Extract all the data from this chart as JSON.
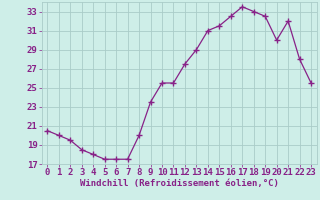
{
  "x": [
    0,
    1,
    2,
    3,
    4,
    5,
    6,
    7,
    8,
    9,
    10,
    11,
    12,
    13,
    14,
    15,
    16,
    17,
    18,
    19,
    20,
    21,
    22,
    23
  ],
  "y": [
    20.5,
    20.0,
    19.5,
    18.5,
    18.0,
    17.5,
    17.5,
    17.5,
    20.0,
    23.5,
    25.5,
    25.5,
    27.5,
    29.0,
    31.0,
    31.5,
    32.5,
    33.5,
    33.0,
    32.5,
    30.0,
    32.0,
    28.0,
    25.5
  ],
  "line_color": "#882288",
  "marker": "+",
  "bg_color": "#ceeee8",
  "grid_color": "#aaccc8",
  "xlabel": "Windchill (Refroidissement éolien,°C)",
  "ylim": [
    17,
    34
  ],
  "yticks": [
    17,
    19,
    21,
    23,
    25,
    27,
    29,
    31,
    33
  ],
  "xtick_labels": [
    "0",
    "1",
    "2",
    "3",
    "4",
    "5",
    "6",
    "7",
    "8",
    "9",
    "10",
    "11",
    "12",
    "13",
    "14",
    "15",
    "16",
    "17",
    "18",
    "19",
    "20",
    "21",
    "22",
    "23"
  ],
  "font_color": "#882288",
  "xlabel_fontsize": 6.5,
  "tick_fontsize": 6.5
}
